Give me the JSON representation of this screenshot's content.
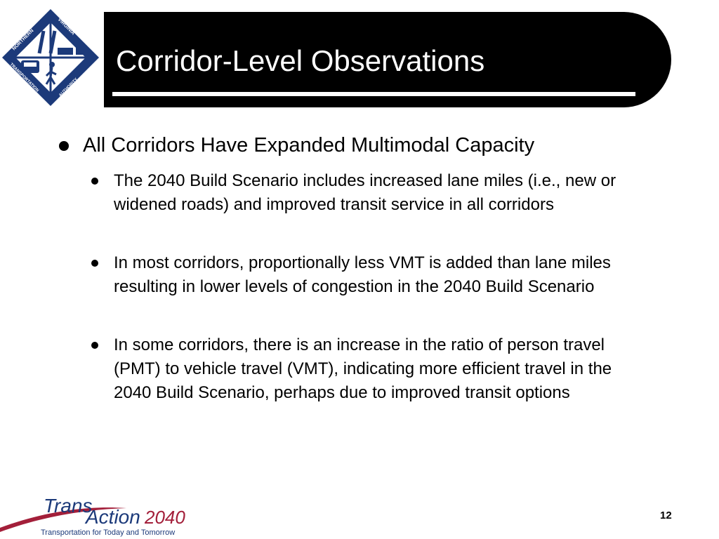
{
  "header": {
    "title": "Corridor-Level Observations"
  },
  "logo": {
    "top_text": "NORTHERN",
    "right_text": "VIRGINIA",
    "bottom_left_text": "TRANSPORTATION",
    "bottom_right_text": "AUTHORITY",
    "colors": {
      "navy": "#1c3a7a",
      "white": "#ffffff"
    }
  },
  "content": {
    "main_bullet": "All Corridors Have Expanded Multimodal Capacity",
    "sub_bullets": [
      "The 2040 Build Scenario includes increased lane miles (i.e., new or widened roads) and improved transit service in all corridors",
      "In most corridors, proportionally less VMT is added than lane miles resulting in lower levels of congestion in the 2040 Build Scenario",
      "In some corridors, there is an increase in the ratio of person travel (PMT) to vehicle travel (VMT), indicating more efficient travel in the 2040 Build Scenario, perhaps due to improved transit options"
    ]
  },
  "footer": {
    "brand_trans": "Trans",
    "brand_action": "Action",
    "brand_year": "2040",
    "tagline": "Transportation for Today and Tomorrow",
    "page_number": "12",
    "colors": {
      "swoosh": "#a31f3a",
      "navy": "#1c3a7a"
    }
  }
}
